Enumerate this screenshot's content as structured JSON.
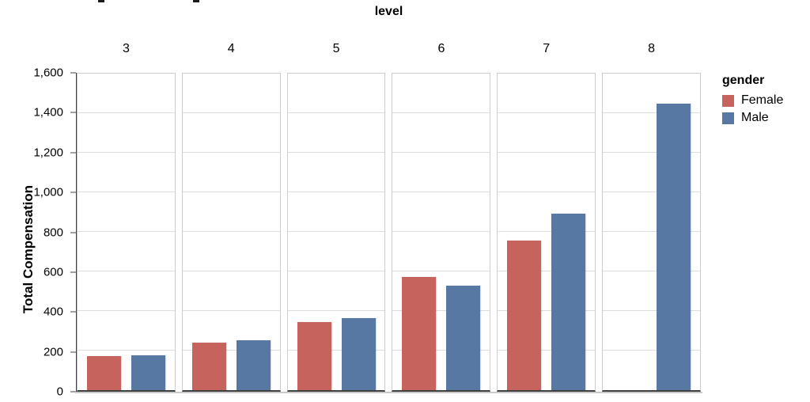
{
  "header": {
    "facet_title": "level",
    "clipped_top_title": true
  },
  "y_axis": {
    "title": "Total Compensation",
    "ticks": [
      {
        "label": "0",
        "value": 0
      },
      {
        "label": "200",
        "value": 200
      },
      {
        "label": "400",
        "value": 400
      },
      {
        "label": "600",
        "value": 600
      },
      {
        "label": "800",
        "value": 800
      },
      {
        "label": "1,000",
        "value": 1000
      },
      {
        "label": "1,200",
        "value": 1200
      },
      {
        "label": "1,400",
        "value": 1400
      },
      {
        "label": "1,600",
        "value": 1600
      }
    ]
  },
  "legend": {
    "title": "gender",
    "items": [
      {
        "label": "Female",
        "color": "#c5635c"
      },
      {
        "label": "Male",
        "color": "#5878a4"
      }
    ]
  },
  "chart_data": {
    "type": "bar",
    "facet_field": "level",
    "facets": [
      "3",
      "4",
      "5",
      "6",
      "7",
      "8"
    ],
    "series": [
      {
        "name": "Female",
        "color": "#c5635c",
        "values": [
          172,
          242,
          345,
          572,
          757,
          null
        ]
      },
      {
        "name": "Male",
        "color": "#5878a4",
        "values": [
          178,
          253,
          365,
          527,
          893,
          1450
        ]
      }
    ],
    "title": "",
    "xlabel": "level",
    "ylabel": "Total Compensation",
    "ylim": [
      0,
      1600
    ],
    "grid": true,
    "grid_step": 200,
    "legend_position": "top-right"
  }
}
